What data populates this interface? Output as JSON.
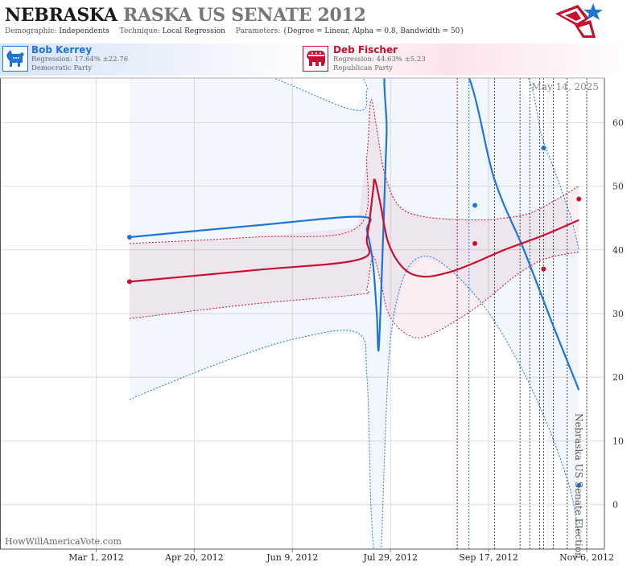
{
  "header": {
    "title_bold": "NEBRASKA",
    "title_gray": "RASKA US SENATE 2012",
    "demographic_label": "Demographic:",
    "demographic_value": "Independents",
    "technique_label": "Technique:",
    "technique_value": "Local Regression",
    "parameters_label": "Parameters:",
    "parameters_value": "{Degree = Linear, Alpha = 0.8, Bandwidth = 50}"
  },
  "candidates": {
    "democrat": {
      "name": "Bob Kerrey",
      "regression": "Regression: 17.64% ±22.76",
      "party": "Democratic Party",
      "color": "#1f74d6",
      "icon": "donkey-icon"
    },
    "republican": {
      "name": "Deb Fischer",
      "regression": "Regression: 44.63% ±5.23",
      "party": "Republican Party",
      "color": "#c8102e",
      "icon": "elephant-icon"
    }
  },
  "date_stamp": "May 14, 2025",
  "watermark": "HowWillAmericaVote.com",
  "event_label": "Nebraska US Senate Election",
  "chart_data": {
    "type": "line",
    "x_axis": {
      "type": "date",
      "range": [
        "2012-01-12",
        "2012-11-15"
      ],
      "ticks": [
        {
          "date": "2012-03-01",
          "label": "Mar 1, 2012"
        },
        {
          "date": "2012-04-20",
          "label": "Apr 20, 2012"
        },
        {
          "date": "2012-06-09",
          "label": "Jun 9, 2012"
        },
        {
          "date": "2012-07-29",
          "label": "Jul 29, 2012"
        },
        {
          "date": "2012-09-17",
          "label": "Sep 17, 2012"
        },
        {
          "date": "2012-11-06",
          "label": "Nov 6, 2012"
        }
      ]
    },
    "y_axis": {
      "range": [
        -7,
        67
      ],
      "ticks": [
        0,
        10,
        20,
        30,
        40,
        50,
        60
      ],
      "position": "right"
    },
    "grid": true,
    "series": [
      {
        "name": "Bob Kerrey",
        "party": "Democratic",
        "color": "#1f74d6",
        "polls": [
          {
            "x": "2012-03-18",
            "y": 42
          },
          {
            "x": "2012-09-10",
            "y": 47
          },
          {
            "x": "2012-10-15",
            "y": 56
          },
          {
            "x": "2012-11-02",
            "y": 3
          }
        ],
        "regression": [
          {
            "x": "2012-03-18",
            "y": 42
          },
          {
            "x": "2012-05-20",
            "y": 43.8
          },
          {
            "x": "2012-07-14",
            "y": 45.2
          },
          {
            "x": "2012-07-17",
            "y": 43
          },
          {
            "x": "2012-07-20",
            "y": 38
          },
          {
            "x": "2012-07-22",
            "y": 30
          },
          {
            "x": "2012-07-23",
            "y": 24.5
          },
          {
            "x": "2012-07-25",
            "y": 40
          },
          {
            "x": "2012-07-27",
            "y": 58
          },
          {
            "x": "2012-07-29",
            "y": 70
          },
          {
            "x": "2012-09-02",
            "y": 70
          },
          {
            "x": "2012-09-20",
            "y": 51
          },
          {
            "x": "2012-10-05",
            "y": 40
          },
          {
            "x": "2012-10-20",
            "y": 28
          },
          {
            "x": "2012-11-02",
            "y": 18
          }
        ],
        "upper_band": [
          {
            "x": "2012-03-18",
            "y": 70
          },
          {
            "x": "2012-05-15",
            "y": 68.5
          },
          {
            "x": "2012-07-10",
            "y": 62
          },
          {
            "x": "2012-07-17",
            "y": 65
          },
          {
            "x": "2012-07-19",
            "y": 70
          },
          {
            "x": "2012-09-28",
            "y": 70
          },
          {
            "x": "2012-10-15",
            "y": 57
          },
          {
            "x": "2012-10-28",
            "y": 46
          },
          {
            "x": "2012-11-02",
            "y": 40
          }
        ],
        "lower_band": [
          {
            "x": "2012-03-18",
            "y": 16.5
          },
          {
            "x": "2012-05-01",
            "y": 22
          },
          {
            "x": "2012-06-10",
            "y": 26
          },
          {
            "x": "2012-07-12",
            "y": 27
          },
          {
            "x": "2012-07-17",
            "y": 20
          },
          {
            "x": "2012-07-19",
            "y": 0
          },
          {
            "x": "2012-07-21",
            "y": -8
          },
          {
            "x": "2012-07-24",
            "y": -8
          },
          {
            "x": "2012-07-26",
            "y": 8
          },
          {
            "x": "2012-07-29",
            "y": 26
          },
          {
            "x": "2012-08-05",
            "y": 36
          },
          {
            "x": "2012-08-15",
            "y": 39
          },
          {
            "x": "2012-08-28",
            "y": 37
          },
          {
            "x": "2012-09-15",
            "y": 31
          },
          {
            "x": "2012-10-01",
            "y": 23
          },
          {
            "x": "2012-10-15",
            "y": 14
          },
          {
            "x": "2012-10-28",
            "y": 3
          },
          {
            "x": "2012-11-02",
            "y": -5
          }
        ]
      },
      {
        "name": "Deb Fischer",
        "party": "Republican",
        "color": "#c8102e",
        "polls": [
          {
            "x": "2012-03-18",
            "y": 35
          },
          {
            "x": "2012-09-10",
            "y": 41
          },
          {
            "x": "2012-10-15",
            "y": 37
          },
          {
            "x": "2012-11-02",
            "y": 48
          }
        ],
        "regression": [
          {
            "x": "2012-03-18",
            "y": 35
          },
          {
            "x": "2012-05-20",
            "y": 36.8
          },
          {
            "x": "2012-07-13",
            "y": 38.5
          },
          {
            "x": "2012-07-17",
            "y": 42
          },
          {
            "x": "2012-07-20",
            "y": 49
          },
          {
            "x": "2012-07-21",
            "y": 51
          },
          {
            "x": "2012-07-24",
            "y": 47
          },
          {
            "x": "2012-07-28",
            "y": 41
          },
          {
            "x": "2012-08-05",
            "y": 37
          },
          {
            "x": "2012-08-15",
            "y": 35.8
          },
          {
            "x": "2012-08-28",
            "y": 36.5
          },
          {
            "x": "2012-09-10",
            "y": 38
          },
          {
            "x": "2012-09-25",
            "y": 40
          },
          {
            "x": "2012-10-15",
            "y": 42.3
          },
          {
            "x": "2012-11-02",
            "y": 44.7
          }
        ],
        "upper_band": [
          {
            "x": "2012-03-18",
            "y": 41
          },
          {
            "x": "2012-05-20",
            "y": 42
          },
          {
            "x": "2012-07-12",
            "y": 43.5
          },
          {
            "x": "2012-07-17",
            "y": 55
          },
          {
            "x": "2012-07-19",
            "y": 63.5
          },
          {
            "x": "2012-07-22",
            "y": 59
          },
          {
            "x": "2012-07-26",
            "y": 52
          },
          {
            "x": "2012-08-02",
            "y": 47
          },
          {
            "x": "2012-08-15",
            "y": 45.2
          },
          {
            "x": "2012-09-10",
            "y": 44.7
          },
          {
            "x": "2012-09-25",
            "y": 45
          },
          {
            "x": "2012-10-10",
            "y": 46
          },
          {
            "x": "2012-11-02",
            "y": 50
          }
        ],
        "lower_band": [
          {
            "x": "2012-03-18",
            "y": 29.2
          },
          {
            "x": "2012-05-20",
            "y": 31.5
          },
          {
            "x": "2012-07-13",
            "y": 33
          },
          {
            "x": "2012-07-17",
            "y": 34
          },
          {
            "x": "2012-07-20",
            "y": 39
          },
          {
            "x": "2012-07-24",
            "y": 35
          },
          {
            "x": "2012-07-28",
            "y": 30
          },
          {
            "x": "2012-08-05",
            "y": 27
          },
          {
            "x": "2012-08-15",
            "y": 26.3
          },
          {
            "x": "2012-09-01",
            "y": 29
          },
          {
            "x": "2012-09-15",
            "y": 32
          },
          {
            "x": "2012-10-01",
            "y": 36
          },
          {
            "x": "2012-10-15",
            "y": 38.5
          },
          {
            "x": "2012-11-02",
            "y": 39.7
          }
        ]
      }
    ],
    "vertical_markers": [
      {
        "x": "2012-09-01",
        "color": "#8b0f5a"
      },
      {
        "x": "2012-09-07",
        "color": "#1f74d6"
      },
      {
        "x": "2012-09-20",
        "color": "#444444"
      },
      {
        "x": "2012-10-03",
        "color": "#444444"
      },
      {
        "x": "2012-10-08",
        "color": "#444444"
      },
      {
        "x": "2012-10-13",
        "color": "#444444"
      },
      {
        "x": "2012-10-15",
        "color": "#444444"
      },
      {
        "x": "2012-10-20",
        "color": "#444444"
      },
      {
        "x": "2012-10-27",
        "color": "#444444"
      },
      {
        "x": "2012-11-06",
        "color": "#444444"
      }
    ]
  }
}
